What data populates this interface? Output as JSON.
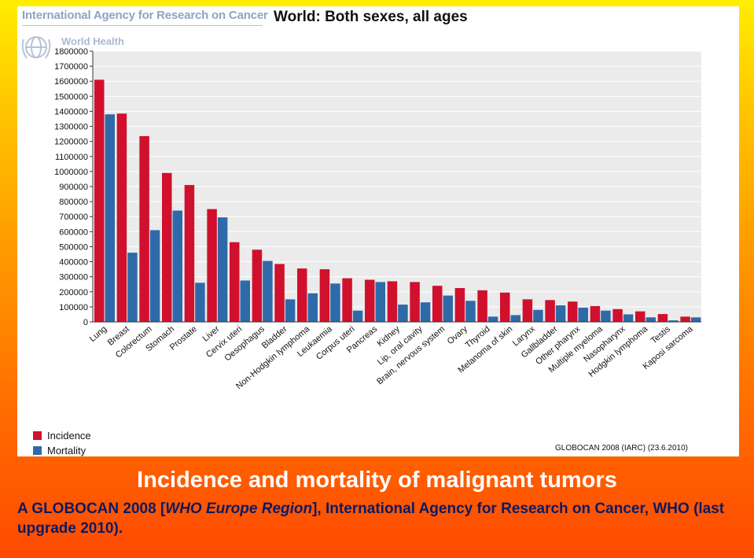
{
  "header": {
    "agency": "International Agency for Research on Cancer",
    "who": "World Health"
  },
  "chart_data": {
    "type": "bar",
    "title": "World: Both sexes, all ages",
    "xlabel": "",
    "ylabel": "",
    "ylim": [
      0,
      1800000
    ],
    "yticks": [
      0,
      100000,
      200000,
      300000,
      400000,
      500000,
      600000,
      700000,
      800000,
      900000,
      1000000,
      1100000,
      1200000,
      1300000,
      1400000,
      1500000,
      1600000,
      1700000,
      1800000
    ],
    "grid": true,
    "legend_position": "bottom-left",
    "categories": [
      "Lung",
      "Breast",
      "Colorectum",
      "Stomach",
      "Prostate",
      "Liver",
      "Cervix uteri",
      "Oesophagus",
      "Bladder",
      "Non-Hodgkin lymphoma",
      "Leukaemia",
      "Corpus uteri",
      "Pancreas",
      "Kidney",
      "Lip, oral cavity",
      "Brain, nervous system",
      "Ovary",
      "Thyroid",
      "Melanoma of skin",
      "Larynx",
      "Gallbladder",
      "Other pharynx",
      "Multiple myeloma",
      "Nasopharynx",
      "Hodgkin lymphoma",
      "Testis",
      "Kaposi sarcoma"
    ],
    "series": [
      {
        "name": "Incidence",
        "color": "#d0102d",
        "values": [
          1610000,
          1385000,
          1235000,
          990000,
          910000,
          750000,
          530000,
          480000,
          385000,
          355000,
          350000,
          290000,
          280000,
          270000,
          265000,
          240000,
          225000,
          210000,
          195000,
          150000,
          145000,
          135000,
          105000,
          85000,
          70000,
          52000,
          35000
        ]
      },
      {
        "name": "Mortality",
        "color": "#2f6aa8",
        "values": [
          1380000,
          460000,
          610000,
          740000,
          260000,
          695000,
          275000,
          405000,
          150000,
          190000,
          255000,
          75000,
          265000,
          115000,
          130000,
          175000,
          140000,
          35000,
          45000,
          80000,
          110000,
          95000,
          75000,
          50000,
          30000,
          10000,
          30000
        ]
      }
    ],
    "credit": "GLOBOCAN 2008 (IARC) (23.6.2010)"
  },
  "caption": {
    "title": "Incidence and mortality of malignant tumors",
    "line_prefix": "A GLOBOCAN 2008 [",
    "line_italic": "WHO Europe Region",
    "line_suffix": "], International Agency for Research on Cancer, WHO (last upgrade 2010).",
    "title_color": "#ffffff",
    "body_color": "#0b1a63"
  }
}
